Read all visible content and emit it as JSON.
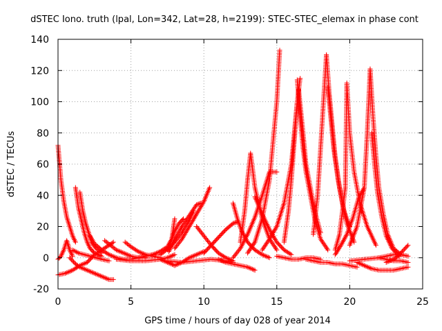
{
  "chart_data": {
    "type": "scatter",
    "title": "dSTEC Iono. truth (lpal, Lon=342, Lat=28, h=2199): STEC-STEC_elemax in phase cont",
    "xlabel": "GPS time / hours of day 028 of year 2014",
    "ylabel": "dSTEC  / TECUs",
    "xlim": [
      0,
      25
    ],
    "ylim": [
      -20,
      140
    ],
    "xticks": [
      0,
      5,
      10,
      15,
      20,
      25
    ],
    "yticks": [
      -20,
      0,
      20,
      40,
      60,
      80,
      100,
      120,
      140
    ],
    "grid": true,
    "marker": "+",
    "color": "#ff0000",
    "series": [
      {
        "x": [
          0.0,
          0.2,
          0.4,
          0.6,
          0.8,
          1.0,
          1.2
        ],
        "y": [
          72,
          50,
          36,
          26,
          20,
          14,
          10
        ]
      },
      {
        "x": [
          0.0,
          0.5,
          1.0,
          1.5,
          2.0,
          2.5,
          3.0,
          3.5,
          3.8
        ],
        "y": [
          -11,
          -10,
          -8,
          -5,
          -3,
          2,
          5,
          8,
          10
        ]
      },
      {
        "x": [
          0.0,
          0.2,
          0.4,
          0.6,
          0.8,
          1.0
        ],
        "y": [
          -1,
          1,
          5,
          11,
          5,
          1
        ]
      },
      {
        "x": [
          0.8,
          1.0,
          1.2,
          1.5,
          2.0,
          2.5,
          3.0,
          3.5,
          3.8
        ],
        "y": [
          0,
          -2,
          -4,
          -6,
          -8,
          -10,
          -12,
          -14,
          -14
        ]
      },
      {
        "x": [
          1.2,
          1.4,
          1.6,
          1.8,
          2.0,
          2.2,
          2.5,
          3.0
        ],
        "y": [
          45,
          32,
          24,
          16,
          10,
          6,
          3,
          1
        ]
      },
      {
        "x": [
          1.5,
          1.7,
          1.9,
          2.1,
          2.3,
          2.6,
          3.0
        ],
        "y": [
          42,
          30,
          22,
          16,
          10,
          6,
          3
        ]
      },
      {
        "x": [
          1.0,
          1.4,
          1.8,
          2.2,
          2.6,
          3.0,
          3.5
        ],
        "y": [
          5,
          3,
          2,
          1,
          0,
          -1,
          -2
        ]
      },
      {
        "x": [
          2.2,
          2.5,
          3.0,
          3.5,
          4.0,
          4.5,
          5.0,
          5.5,
          6.0
        ],
        "y": [
          14,
          9,
          5,
          2,
          0,
          -1,
          -1,
          0,
          0
        ]
      },
      {
        "x": [
          3.2,
          3.6,
          4.0,
          4.5,
          5.0,
          5.5,
          6.0,
          6.5
        ],
        "y": [
          11,
          8,
          5,
          3,
          1,
          0,
          1,
          2
        ]
      },
      {
        "x": [
          4.6,
          5.0,
          5.5,
          6.0,
          6.5,
          7.0
        ],
        "y": [
          10,
          7,
          4,
          2,
          1,
          0
        ]
      },
      {
        "x": [
          4.0,
          5.0,
          6.0,
          7.0,
          7.5,
          8.0
        ],
        "y": [
          -1,
          -2,
          -2,
          -1,
          0,
          2
        ]
      },
      {
        "x": [
          5.5,
          6.0,
          6.5,
          7.0,
          7.5,
          7.8,
          8.0
        ],
        "y": [
          0,
          1,
          2,
          4,
          7,
          12,
          25
        ]
      },
      {
        "x": [
          7.0,
          7.3,
          7.6,
          7.8,
          8.0,
          8.3,
          8.6
        ],
        "y": [
          2,
          4,
          7,
          12,
          17,
          22,
          25
        ]
      },
      {
        "x": [
          7.5,
          8.0,
          8.5,
          9.0,
          9.3
        ],
        "y": [
          5,
          10,
          16,
          24,
          30
        ]
      },
      {
        "x": [
          7.6,
          8.0,
          8.5,
          9.0,
          9.5,
          9.8
        ],
        "y": [
          4,
          12,
          20,
          27,
          34,
          35
        ]
      },
      {
        "x": [
          8.0,
          8.5,
          9.0,
          9.5,
          10.0,
          10.4
        ],
        "y": [
          6,
          12,
          20,
          28,
          36,
          45
        ]
      },
      {
        "x": [
          7.0,
          7.5,
          8.0,
          8.5,
          9.0,
          9.5,
          10.0
        ],
        "y": [
          -1,
          -3,
          -5,
          -3,
          0,
          2,
          4
        ]
      },
      {
        "x": [
          7.5,
          8.5,
          9.5,
          10.5,
          11.5,
          12.0
        ],
        "y": [
          -2,
          -3,
          -2,
          -1,
          -2,
          -3
        ]
      },
      {
        "x": [
          9.5,
          10.0,
          10.5,
          11.0,
          11.5,
          12.0
        ],
        "y": [
          20,
          14,
          8,
          3,
          0,
          -2
        ]
      },
      {
        "x": [
          10.0,
          10.5,
          11.0,
          11.5,
          12.0,
          12.3
        ],
        "y": [
          3,
          8,
          13,
          18,
          22,
          23
        ]
      },
      {
        "x": [
          11.0,
          11.5,
          12.0,
          12.5,
          13.0,
          13.5
        ],
        "y": [
          -1,
          -3,
          -4,
          -5,
          -6,
          -8
        ]
      },
      {
        "x": [
          12.0,
          12.3,
          12.6,
          13.0,
          13.5,
          14.0,
          14.5
        ],
        "y": [
          35,
          25,
          17,
          10,
          5,
          2,
          0
        ]
      },
      {
        "x": [
          12.5,
          12.8,
          13.0,
          13.2,
          13.5,
          14.0,
          14.5,
          15.0
        ],
        "y": [
          10,
          30,
          50,
          67,
          45,
          25,
          12,
          5
        ]
      },
      {
        "x": [
          12.0,
          12.5,
          13.0,
          13.5,
          14.0,
          14.5,
          15.0
        ],
        "y": [
          0,
          6,
          15,
          26,
          40,
          55,
          55
        ]
      },
      {
        "x": [
          13.5,
          14.0,
          14.5,
          15.0,
          15.5,
          16.0
        ],
        "y": [
          39,
          28,
          18,
          10,
          5,
          2
        ]
      },
      {
        "x": [
          13.0,
          13.5,
          14.0,
          14.5,
          15.0,
          15.2
        ],
        "y": [
          3,
          10,
          25,
          50,
          100,
          133
        ]
      },
      {
        "x": [
          14.0,
          14.5,
          15.0,
          15.5,
          16.0,
          16.2,
          16.4
        ],
        "y": [
          5,
          12,
          20,
          35,
          60,
          80,
          100
        ]
      },
      {
        "x": [
          15.5,
          15.8,
          16.0,
          16.2,
          16.4,
          16.6
        ],
        "y": [
          10,
          30,
          50,
          75,
          100,
          115
        ]
      },
      {
        "x": [
          16.4,
          16.6,
          16.8,
          17.0,
          17.3,
          17.6,
          18.0,
          18.5
        ],
        "y": [
          114,
          90,
          70,
          55,
          40,
          25,
          12,
          5
        ]
      },
      {
        "x": [
          16.5,
          16.8,
          17.0,
          17.3,
          17.6,
          18.0
        ],
        "y": [
          108,
          80,
          60,
          45,
          30,
          16
        ]
      },
      {
        "x": [
          15.0,
          15.5,
          16.0,
          16.5,
          17.0,
          17.5,
          18.0
        ],
        "y": [
          1,
          0,
          -1,
          -1,
          0,
          0,
          -1
        ]
      },
      {
        "x": [
          17.5,
          17.8,
          18.0,
          18.2,
          18.4
        ],
        "y": [
          15,
          40,
          70,
          100,
          130
        ]
      },
      {
        "x": [
          18.4,
          18.6,
          18.8,
          19.0,
          19.3,
          19.6,
          20.0
        ],
        "y": [
          130,
          105,
          85,
          65,
          45,
          30,
          20
        ]
      },
      {
        "x": [
          18.5,
          18.7,
          18.9,
          19.2,
          19.5,
          19.8,
          20.3
        ],
        "y": [
          109,
          90,
          70,
          50,
          35,
          22,
          10
        ]
      },
      {
        "x": [
          19.0,
          19.3,
          19.5,
          19.7,
          19.8,
          20.0,
          20.3,
          20.7,
          21.2,
          21.8
        ],
        "y": [
          5,
          15,
          30,
          45,
          112,
          80,
          55,
          35,
          20,
          8
        ]
      },
      {
        "x": [
          19.0,
          19.4,
          19.8,
          20.2,
          20.6,
          21.0
        ],
        "y": [
          2,
          8,
          15,
          25,
          38,
          45
        ]
      },
      {
        "x": [
          17.0,
          17.5,
          18.0,
          18.5,
          19.0,
          19.5,
          20.0,
          20.5
        ],
        "y": [
          -1,
          -2,
          -3,
          -3,
          -4,
          -4,
          -5,
          -6
        ]
      },
      {
        "x": [
          20.0,
          20.5,
          21.0,
          21.2,
          21.4
        ],
        "y": [
          8,
          20,
          45,
          80,
          121
        ]
      },
      {
        "x": [
          21.4,
          21.6,
          21.8,
          22.0,
          22.3,
          22.6,
          23.0,
          23.5
        ],
        "y": [
          121,
          90,
          65,
          45,
          28,
          15,
          6,
          2
        ]
      },
      {
        "x": [
          21.5,
          21.7,
          21.9,
          22.2,
          22.5,
          22.9,
          23.4
        ],
        "y": [
          80,
          60,
          42,
          26,
          14,
          6,
          1
        ]
      },
      {
        "x": [
          20.5,
          21.0,
          21.5,
          22.0,
          22.5,
          23.0,
          23.5,
          24.0
        ],
        "y": [
          -3,
          -5,
          -7,
          -8,
          -8,
          -8,
          -7,
          -6
        ]
      },
      {
        "x": [
          20.0,
          21.0,
          22.0,
          22.5,
          23.0,
          23.5,
          24.0
        ],
        "y": [
          -2,
          -1,
          0,
          -1,
          -2,
          -2,
          -3
        ]
      },
      {
        "x": [
          22.5,
          23.0,
          23.3,
          23.6,
          24.0
        ],
        "y": [
          -3,
          -1,
          1,
          4,
          8
        ]
      },
      {
        "x": [
          22.0,
          22.5,
          23.0,
          23.5,
          24.0
        ],
        "y": [
          0,
          1,
          2,
          2,
          1
        ]
      }
    ]
  }
}
